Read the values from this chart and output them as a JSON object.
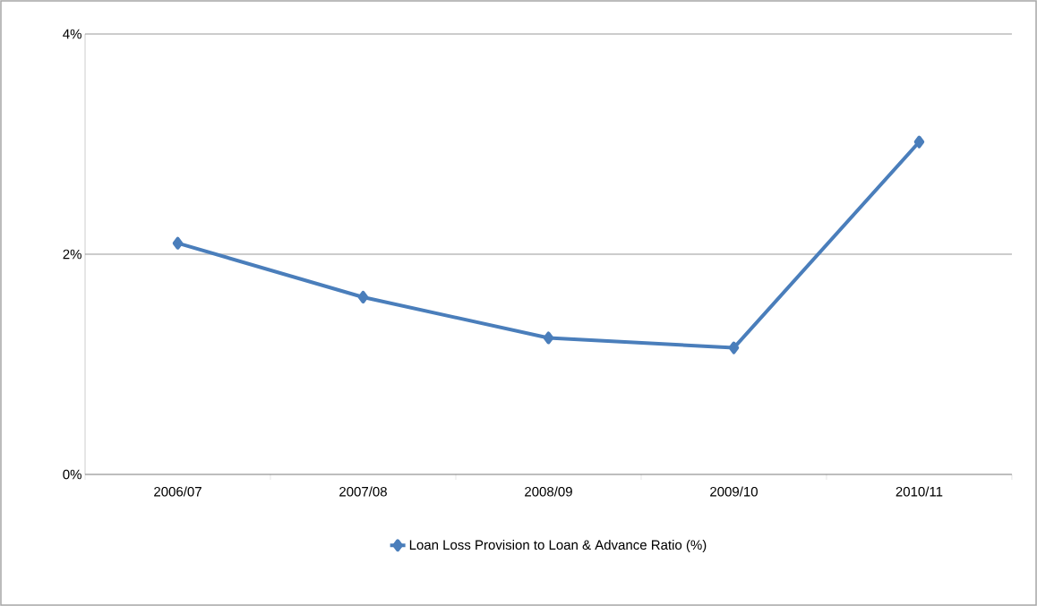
{
  "chart_data": {
    "type": "line",
    "categories": [
      "2006/07",
      "2007/08",
      "2008/09",
      "2009/10",
      "2010/11"
    ],
    "series": [
      {
        "name": "Loan Loss Provision to Loan & Advance Ratio (%)",
        "color": "#4a7ebb",
        "values": [
          2.1,
          1.61,
          1.24,
          1.15,
          3.02
        ]
      }
    ],
    "ylim": [
      0,
      4
    ],
    "yticks": [
      {
        "value": 0,
        "label": "0%"
      },
      {
        "value": 2,
        "label": "2%"
      },
      {
        "value": 4,
        "label": "4%"
      }
    ],
    "grid": "y",
    "legend": "bottom",
    "marker": "diamond",
    "line_style": "solid"
  }
}
